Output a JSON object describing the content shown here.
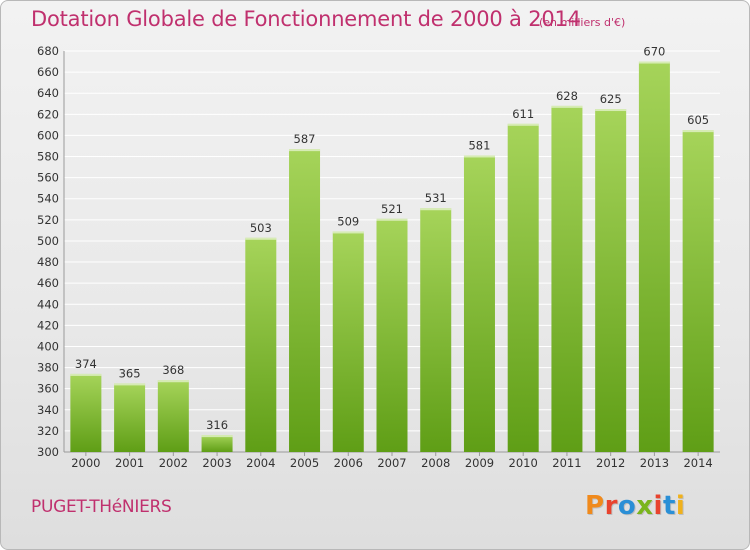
{
  "header": {
    "title": "Dotation Globale de Fonctionnement de 2000 à 2014",
    "subtitle": "(en milliers d'€)"
  },
  "footer": {
    "commune": "PUGET-THéNIERS",
    "logo_text": "Proxiti",
    "logo_colors": [
      "#f08a1c",
      "#e8432e",
      "#2a8fd6",
      "#7ab51d",
      "#e8432e",
      "#2a8fd6",
      "#f0b11c"
    ]
  },
  "colors": {
    "title": "#c0306e",
    "bar_top": "#a6d45a",
    "bar_bottom": "#5f9e16",
    "grid": "#ffffff",
    "axis_text": "#333333"
  },
  "chart_data": {
    "type": "bar",
    "categories": [
      "2000",
      "2001",
      "2002",
      "2003",
      "2004",
      "2005",
      "2006",
      "2007",
      "2008",
      "2009",
      "2010",
      "2011",
      "2012",
      "2013",
      "2014"
    ],
    "values": [
      374,
      365,
      368,
      316,
      503,
      587,
      509,
      521,
      531,
      581,
      611,
      628,
      625,
      670,
      605
    ],
    "ylim": [
      300,
      680
    ],
    "ytick_step": 20,
    "grid": true,
    "xlabel": "",
    "ylabel": ""
  }
}
